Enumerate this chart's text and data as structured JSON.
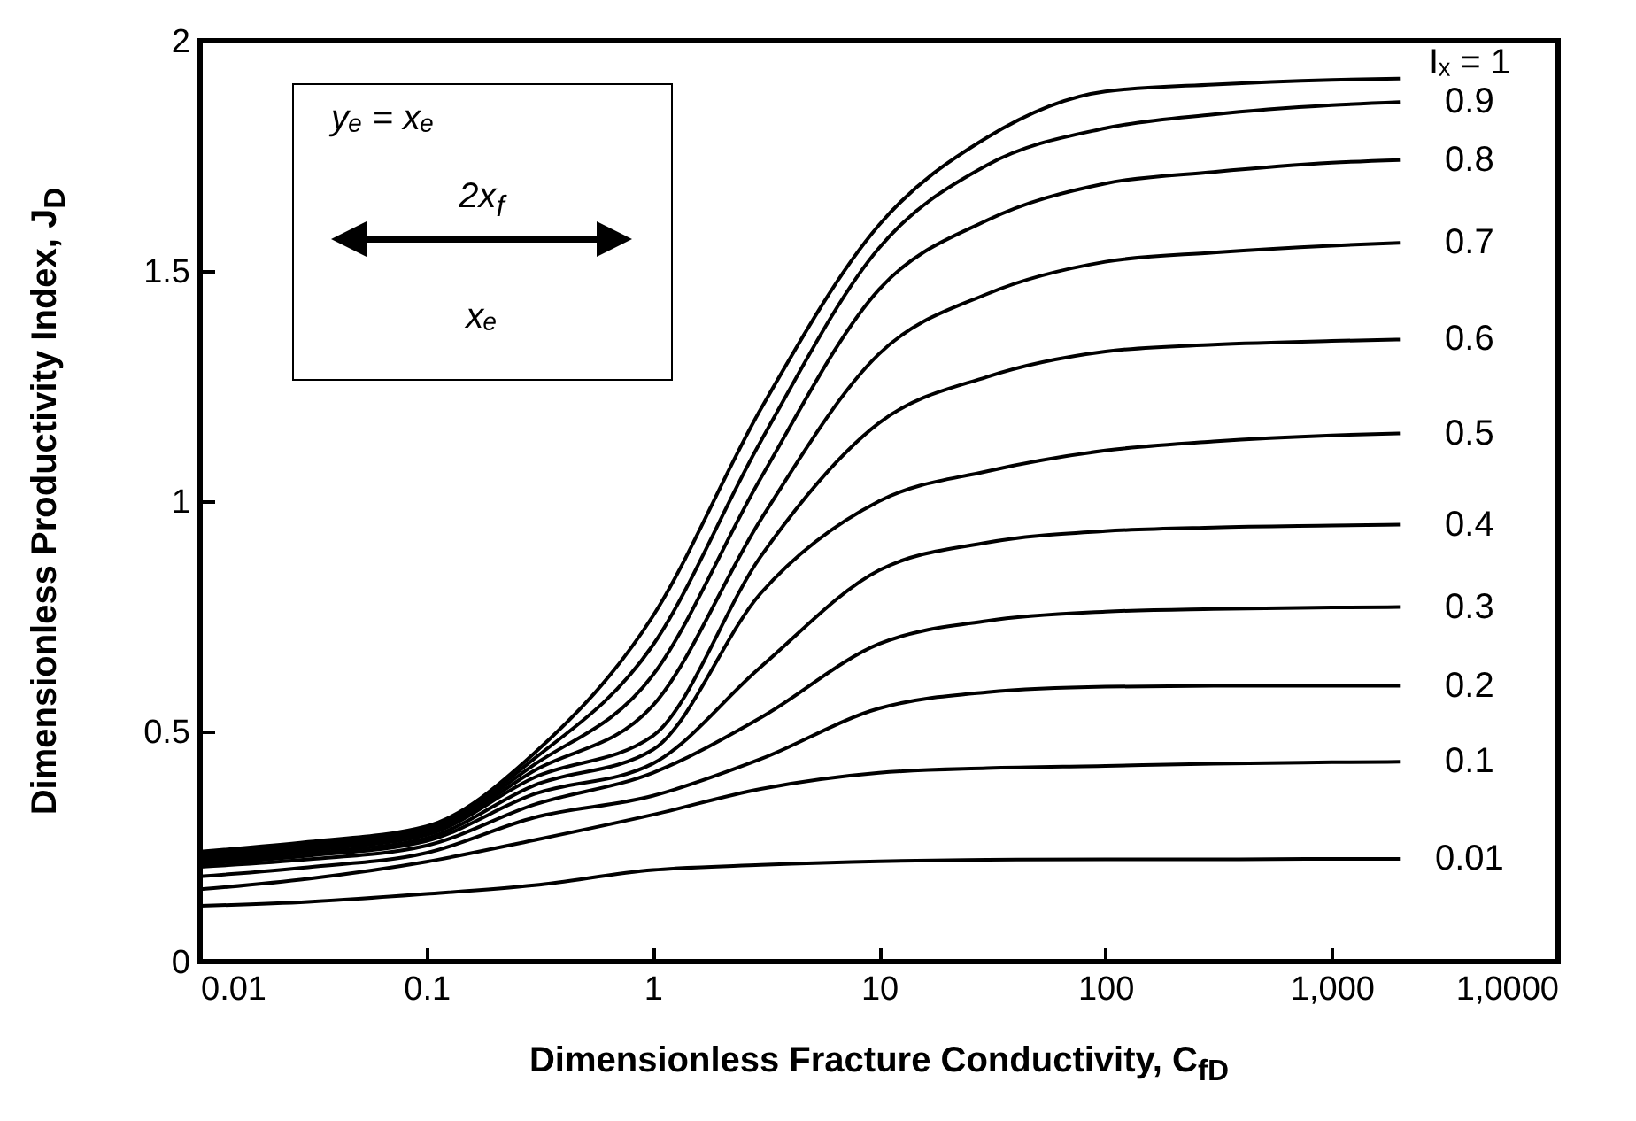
{
  "chart_data": {
    "type": "line",
    "xlabel": "Dimensionless Fracture Conductivity, C$_{fD}$",
    "ylabel": "Dimensionless Productivity Index, J$_{D}$",
    "log": "x",
    "xlim": [
      0.01,
      10000
    ],
    "ylim": [
      0,
      2
    ],
    "xticks": [
      0.01,
      0.1,
      1,
      10,
      100,
      {
        "value": 1000,
        "label": "1,000"
      },
      {
        "value": 10000,
        "label": "1,0000"
      }
    ],
    "yticks": [
      0,
      0.5,
      1,
      1.5,
      2
    ],
    "x": [
      0.01,
      0.03,
      0.1,
      0.3,
      1,
      3,
      10,
      30,
      100,
      300,
      1000,
      2000
    ],
    "series": [
      {
        "name": "Iₓ = 1",
        "color": "#000000",
        "values": [
          0.239,
          0.26,
          0.294,
          0.453,
          0.75,
          1.2,
          1.6,
          1.79,
          1.89,
          1.905,
          1.915,
          1.918
        ]
      },
      {
        "name": "0.9",
        "color": "#000000",
        "values": [
          0.235,
          0.256,
          0.289,
          0.441,
          0.687,
          1.13,
          1.55,
          1.73,
          1.81,
          1.84,
          1.86,
          1.867
        ]
      },
      {
        "name": "0.8",
        "color": "#000000",
        "values": [
          0.231,
          0.252,
          0.284,
          0.428,
          0.622,
          1.05,
          1.46,
          1.61,
          1.69,
          1.715,
          1.735,
          1.741
        ]
      },
      {
        "name": "0.7",
        "color": "#000000",
        "values": [
          0.227,
          0.247,
          0.278,
          0.415,
          0.556,
          0.96,
          1.32,
          1.45,
          1.52,
          1.54,
          1.555,
          1.561
        ]
      },
      {
        "name": "0.6",
        "color": "#000000",
        "values": [
          0.222,
          0.242,
          0.275,
          0.4,
          0.49,
          0.88,
          1.17,
          1.27,
          1.325,
          1.34,
          1.348,
          1.351
        ]
      },
      {
        "name": "0.5",
        "color": "#000000",
        "values": [
          0.217,
          0.236,
          0.268,
          0.383,
          0.46,
          0.8,
          1.0,
          1.065,
          1.11,
          1.13,
          1.143,
          1.147
        ]
      },
      {
        "name": "0.4",
        "color": "#000000",
        "values": [
          0.212,
          0.23,
          0.262,
          0.364,
          0.43,
          0.64,
          0.85,
          0.91,
          0.935,
          0.943,
          0.947,
          0.949
        ]
      },
      {
        "name": "0.3",
        "color": "#000000",
        "values": [
          0.206,
          0.222,
          0.252,
          0.341,
          0.41,
          0.53,
          0.69,
          0.74,
          0.76,
          0.766,
          0.769,
          0.77
        ]
      },
      {
        "name": "0.2",
        "color": "#000000",
        "values": [
          0.185,
          0.205,
          0.236,
          0.313,
          0.36,
          0.44,
          0.55,
          0.585,
          0.597,
          0.599,
          0.599,
          0.599
        ]
      },
      {
        "name": "0.1",
        "color": "#000000",
        "values": [
          0.157,
          0.18,
          0.217,
          0.264,
          0.319,
          0.375,
          0.41,
          0.42,
          0.425,
          0.43,
          0.433,
          0.434
        ]
      },
      {
        "name": "0.01",
        "color": "#000000",
        "values": [
          0.121,
          0.13,
          0.147,
          0.166,
          0.199,
          0.21,
          0.218,
          0.221,
          0.222,
          0.222,
          0.223,
          0.223
        ]
      }
    ],
    "annotations": [
      "yₑ = xₑ",
      "2x$_{f}$",
      "xₑ"
    ]
  }
}
